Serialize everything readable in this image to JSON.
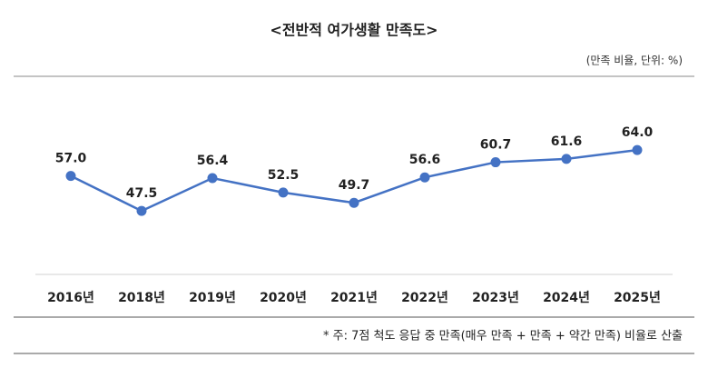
{
  "chart_data": {
    "type": "line",
    "title": "<전반적 여가생활 만족도>",
    "subtitle": "(만족 비율, 단위: %)",
    "categories": [
      "2016년",
      "2018년",
      "2019년",
      "2020년",
      "2021년",
      "2022년",
      "2023년",
      "2024년",
      "2025년"
    ],
    "series": [
      {
        "name": "만족 비율",
        "color": "#4472c4",
        "values": [
          57.0,
          47.5,
          56.4,
          52.5,
          49.7,
          56.6,
          60.7,
          61.6,
          64.0
        ],
        "value_labels": [
          "57.0",
          "47.5",
          "56.4",
          "52.5",
          "49.7",
          "56.6",
          "60.7",
          "61.6",
          "64.0"
        ]
      }
    ],
    "note": "* 주: 7점 척도 응답 중 만족(매우 만족 + 만족 + 약간 만족) 비율로 산출"
  }
}
